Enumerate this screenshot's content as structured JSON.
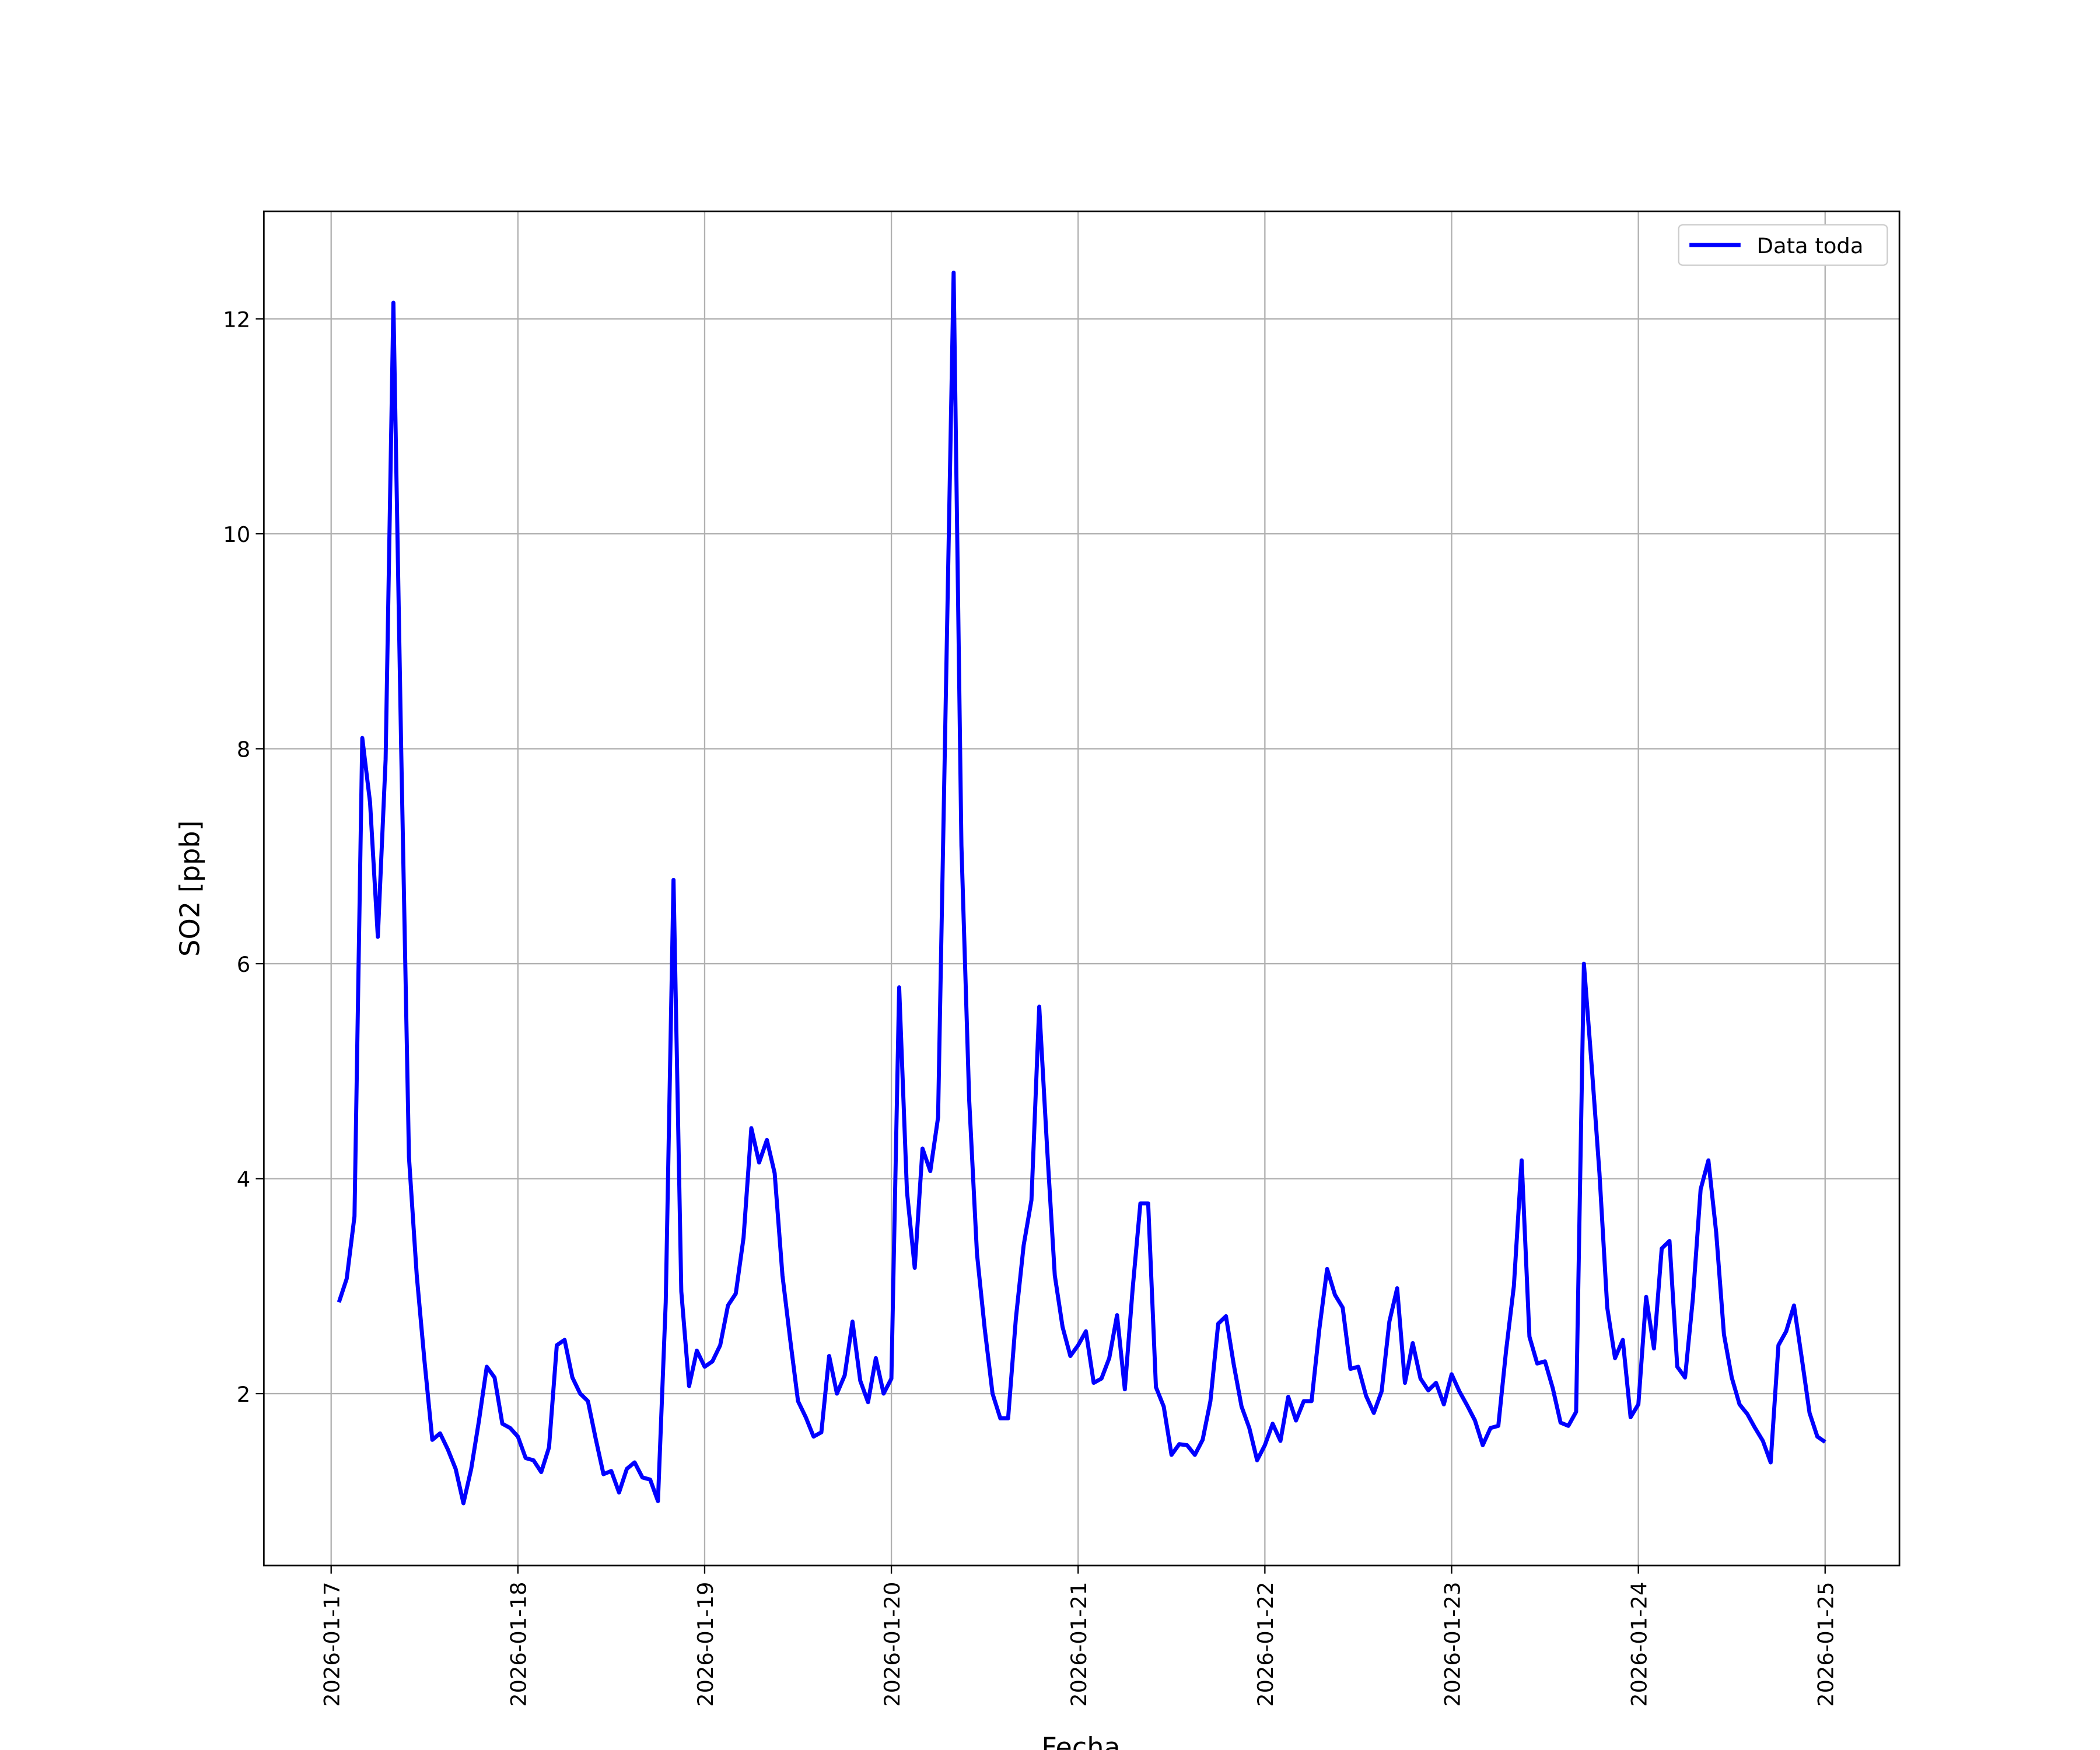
{
  "chart_data": {
    "type": "line",
    "xlabel": "Fecha",
    "ylabel": "SO2 [ppb]",
    "x": [
      1,
      2,
      3,
      4,
      5,
      6,
      7,
      8,
      9,
      10,
      11,
      12,
      13,
      14,
      15,
      16,
      17,
      18,
      19,
      20,
      21,
      22,
      23,
      24,
      25,
      26,
      27,
      28,
      29,
      30,
      31,
      32,
      33,
      34,
      35,
      36,
      37,
      38,
      39,
      40,
      41,
      42,
      43,
      44,
      45,
      46,
      47,
      48,
      49,
      50,
      51,
      52,
      53,
      54,
      55,
      56,
      57,
      58,
      59,
      60,
      61,
      62,
      63,
      64,
      65,
      66,
      67,
      68,
      69,
      70,
      71,
      72,
      73,
      74,
      75,
      76,
      77,
      78,
      79,
      80,
      81,
      82,
      83,
      84,
      85,
      86,
      87,
      88,
      89,
      90,
      91,
      92,
      93,
      94,
      95,
      96,
      97,
      98,
      99,
      100,
      101,
      102,
      103,
      104,
      105,
      106,
      107,
      108,
      109,
      110,
      111,
      112,
      113,
      114,
      115,
      116,
      117,
      118,
      119,
      120,
      121,
      122,
      123,
      124,
      125,
      126,
      127,
      128,
      129,
      130,
      131,
      132,
      133,
      134,
      135,
      136,
      137,
      138,
      139,
      140,
      141,
      142,
      143,
      144,
      145,
      146,
      147,
      148,
      149,
      150,
      151,
      152,
      153,
      154,
      155,
      156,
      157,
      158,
      159,
      160,
      161,
      162,
      163,
      164,
      165,
      166,
      167,
      168,
      169,
      170,
      171,
      172,
      173,
      174,
      175,
      176,
      177,
      178,
      179,
      180,
      181,
      182,
      183,
      184,
      185,
      186,
      187,
      188,
      189,
      190,
      191,
      192
    ],
    "series": [
      {
        "name": "Data toda",
        "color": "#0000ff",
        "values": [
          2.85,
          3.07,
          3.65,
          8.1,
          7.5,
          6.25,
          7.9,
          12.15,
          8.0,
          4.2,
          3.1,
          2.3,
          1.57,
          1.63,
          1.48,
          1.3,
          0.98,
          1.3,
          1.75,
          2.25,
          2.15,
          1.72,
          1.68,
          1.6,
          1.4,
          1.38,
          1.27,
          1.5,
          2.45,
          2.5,
          2.15,
          2.0,
          1.93,
          1.58,
          1.25,
          1.28,
          1.08,
          1.3,
          1.36,
          1.22,
          1.2,
          1.0,
          2.85,
          6.78,
          2.95,
          2.07,
          2.4,
          2.25,
          2.3,
          2.45,
          2.82,
          2.93,
          3.45,
          4.47,
          4.15,
          4.36,
          4.05,
          3.1,
          2.5,
          1.93,
          1.78,
          1.6,
          1.64,
          2.35,
          2.0,
          2.17,
          2.67,
          2.12,
          1.92,
          2.33,
          2.0,
          2.14,
          5.78,
          3.88,
          3.17,
          4.28,
          4.07,
          4.57,
          8.5,
          12.43,
          7.1,
          4.73,
          3.3,
          2.6,
          2.0,
          1.77,
          1.77,
          2.7,
          3.38,
          3.8,
          5.6,
          4.3,
          3.1,
          2.62,
          2.35,
          2.45,
          2.58,
          2.1,
          2.14,
          2.33,
          2.73,
          2.04,
          2.97,
          3.77,
          3.77,
          2.06,
          1.88,
          1.43,
          1.53,
          1.52,
          1.43,
          1.57,
          1.93,
          2.65,
          2.72,
          2.27,
          1.88,
          1.68,
          1.38,
          1.52,
          1.72,
          1.56,
          1.97,
          1.75,
          1.93,
          1.93,
          2.6,
          3.16,
          2.92,
          2.8,
          2.23,
          2.25,
          1.98,
          1.82,
          2.02,
          2.67,
          2.98,
          2.1,
          2.47,
          2.14,
          2.03,
          2.1,
          1.9,
          2.18,
          2.02,
          1.89,
          1.75,
          1.52,
          1.68,
          1.7,
          2.4,
          3.0,
          4.17,
          2.53,
          2.28,
          2.3,
          2.05,
          1.73,
          1.7,
          1.83,
          6.0,
          5.05,
          4.05,
          2.8,
          2.33,
          2.5,
          1.78,
          1.9,
          2.9,
          2.42,
          3.35,
          3.42,
          2.25,
          2.15,
          2.88,
          3.9,
          4.17,
          3.5,
          2.55,
          2.15,
          1.9,
          1.81,
          1.68,
          1.56,
          1.36,
          2.45,
          2.58,
          2.82,
          2.33,
          1.82,
          1.6,
          1.55
        ]
      }
    ],
    "xlim": [
      -8.65,
      201.55
    ],
    "ylim": [
      0.4,
      13.0
    ],
    "xticks": [
      {
        "value": 0,
        "label": "2026-01-17"
      },
      {
        "value": 24,
        "label": "2026-01-18"
      },
      {
        "value": 48,
        "label": "2026-01-19"
      },
      {
        "value": 72,
        "label": "2026-01-20"
      },
      {
        "value": 96,
        "label": "2026-01-21"
      },
      {
        "value": 120,
        "label": "2026-01-22"
      },
      {
        "value": 144,
        "label": "2026-01-23"
      },
      {
        "value": 168,
        "label": "2026-01-24"
      },
      {
        "value": 192,
        "label": "2026-01-25"
      }
    ],
    "yticks": [
      2,
      4,
      6,
      8,
      10,
      12
    ],
    "grid": true,
    "legend": "upper right"
  }
}
